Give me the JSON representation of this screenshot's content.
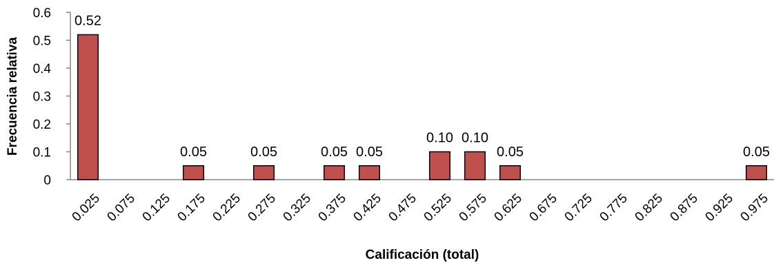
{
  "chart_data": {
    "type": "bar",
    "title": "",
    "xlabel": "Calificación (total)",
    "ylabel": "Frecuencia relativa",
    "ylim": [
      0,
      0.6
    ],
    "yticks": [
      "0",
      "0.1",
      "0.2",
      "0.3",
      "0.4",
      "0.5",
      "0.6"
    ],
    "grid": false,
    "legend": "none",
    "bar_color": "#C0504D",
    "bar_edge_color": "#000000",
    "categories": [
      "0.025",
      "0.075",
      "0.125",
      "0.175",
      "0.225",
      "0.275",
      "0.325",
      "0.375",
      "0.425",
      "0.475",
      "0.525",
      "0.575",
      "0.625",
      "0.675",
      "0.725",
      "0.775",
      "0.825",
      "0.875",
      "0.925",
      "0.975"
    ],
    "values": [
      0.52,
      0,
      0,
      0.05,
      0,
      0.05,
      0,
      0.05,
      0.05,
      0,
      0.1,
      0.1,
      0.05,
      0,
      0,
      0,
      0,
      0,
      0,
      0.05
    ],
    "data_labels": [
      "0.52",
      "",
      "",
      "0.05",
      "",
      "0.05",
      "",
      "0.05",
      "0.05",
      "",
      "0.10",
      "0.10",
      "0.05",
      "",
      "",
      "",
      "",
      "",
      "",
      "0.05"
    ]
  }
}
